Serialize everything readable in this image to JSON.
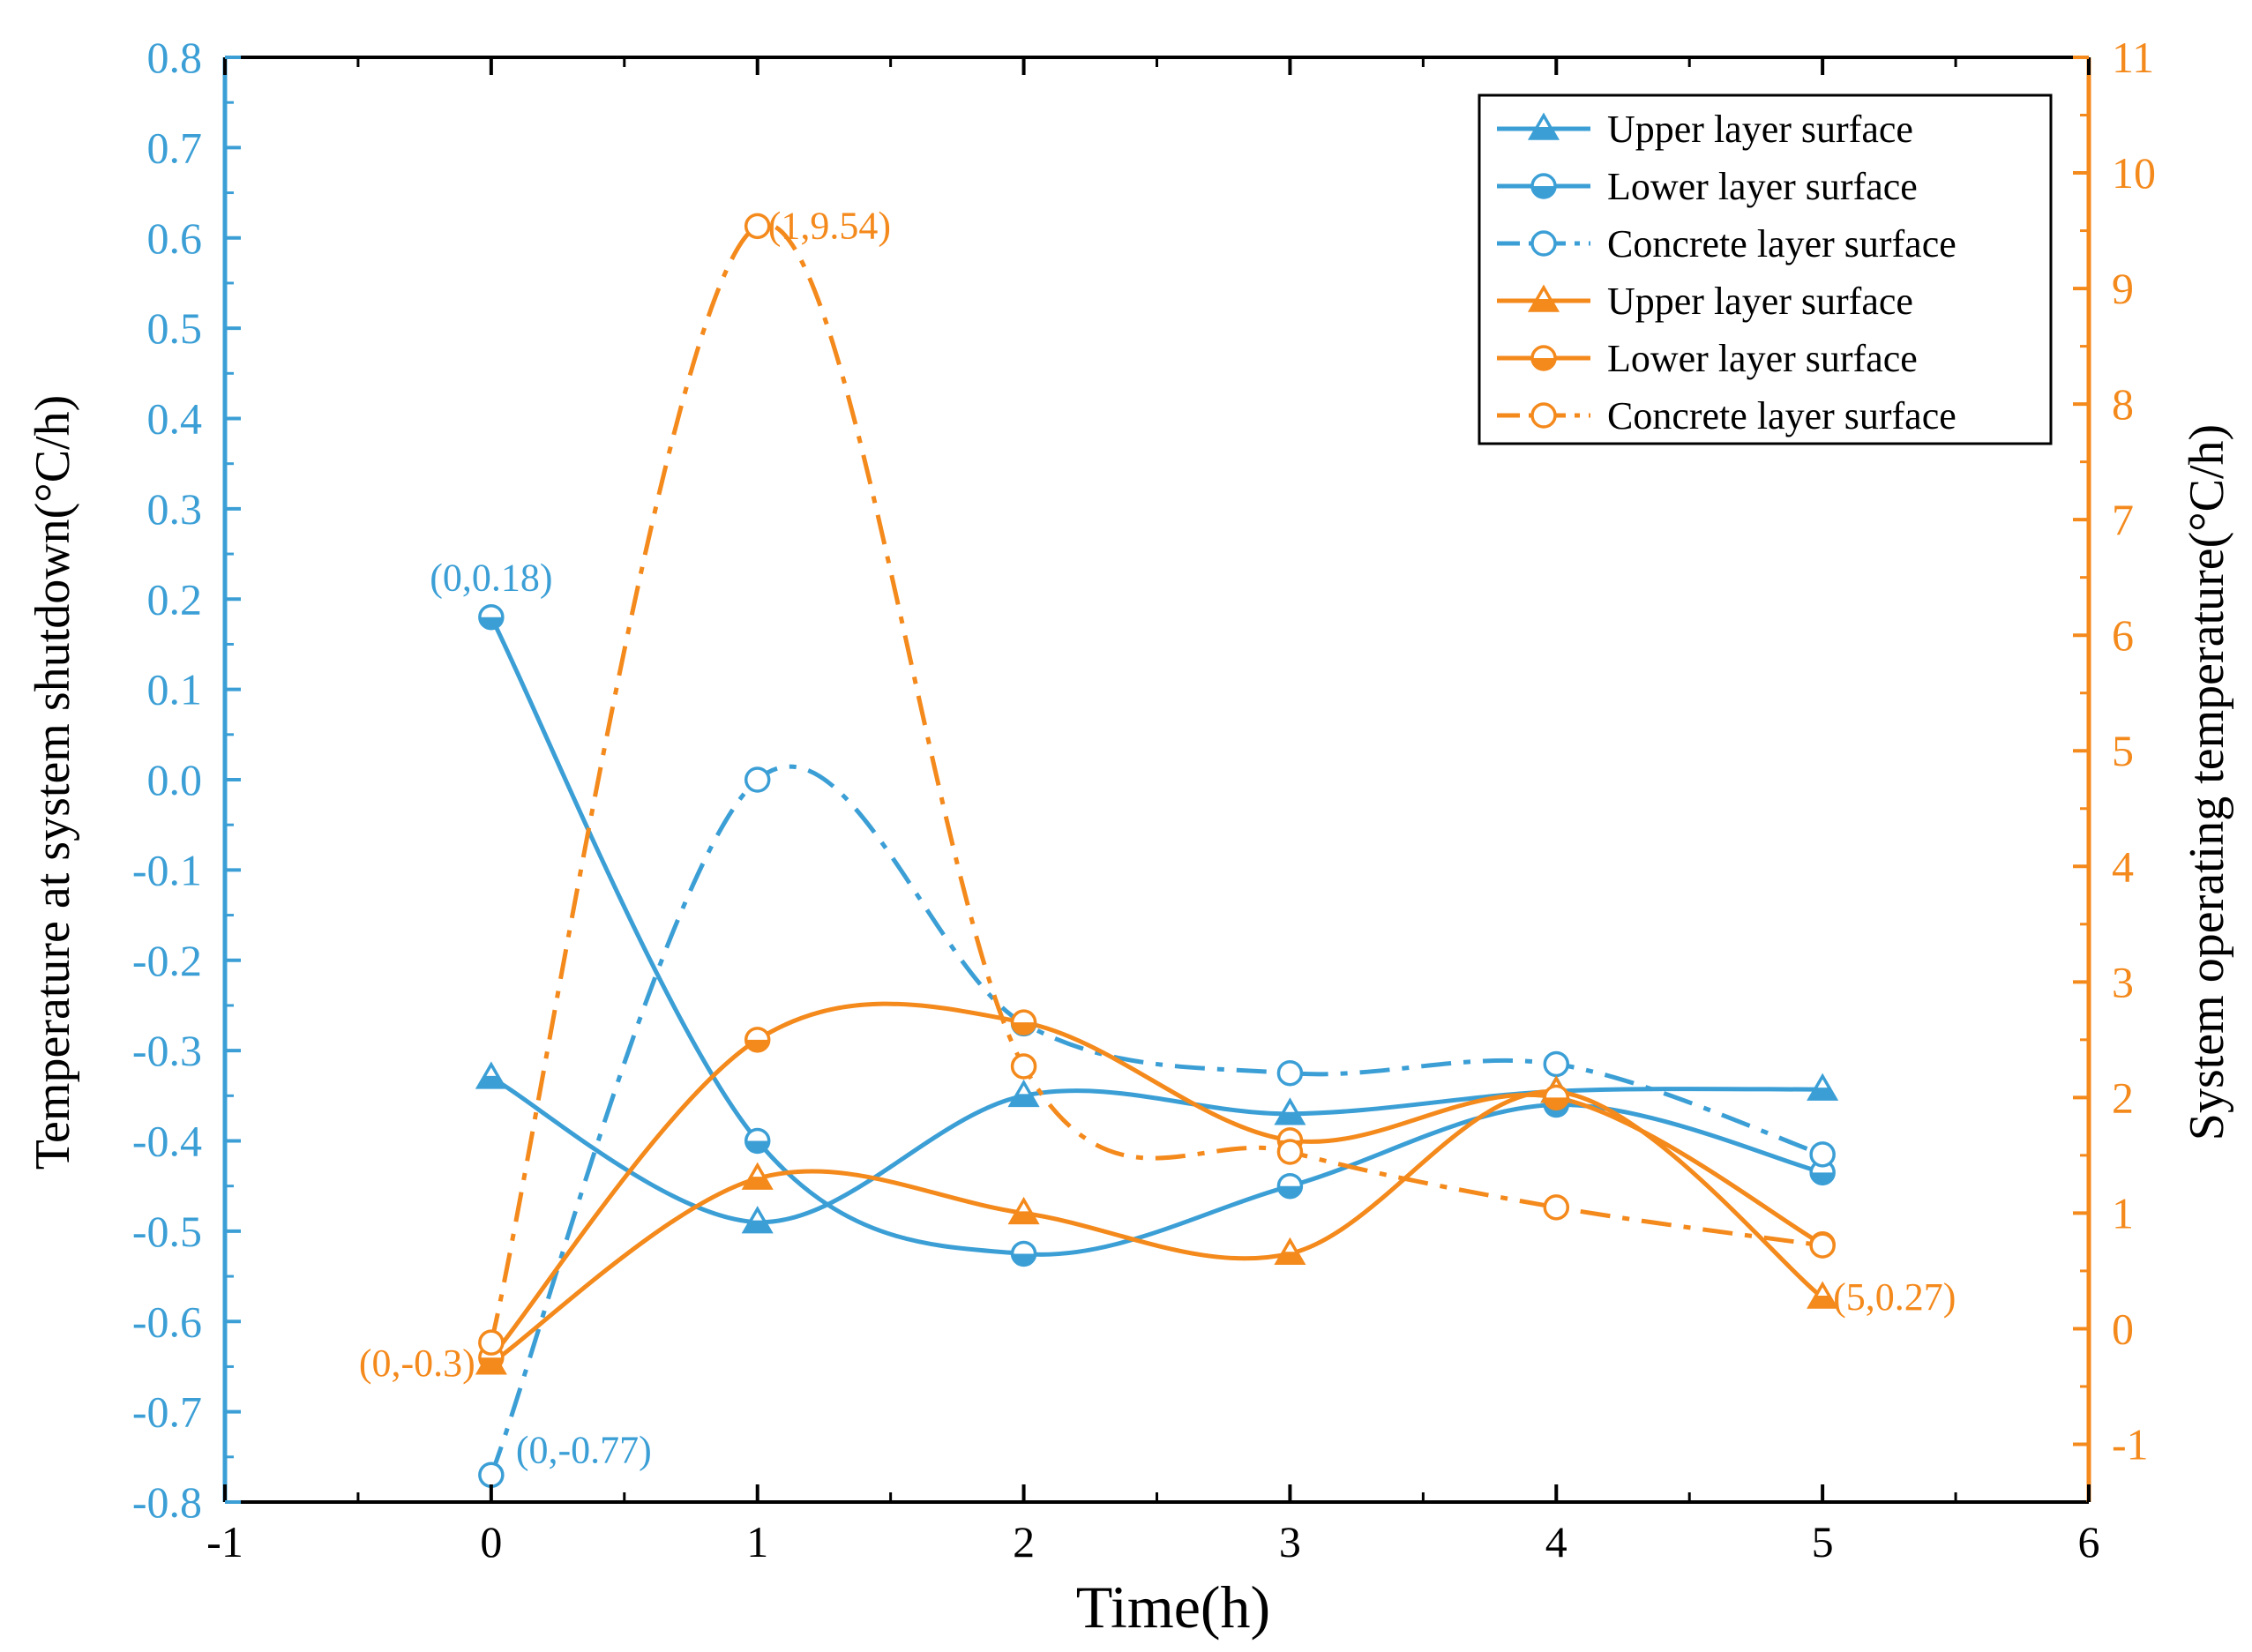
{
  "chart_data": {
    "type": "line",
    "title": "",
    "xlabel": "Time(h)",
    "ylabel_left": "Temperature at system shutdown(°C/h)",
    "ylabel_right": "System operating temperature(°C/h)",
    "xlim": [
      -1,
      6
    ],
    "ylim_left": [
      -0.8,
      0.8
    ],
    "ylim_right": [
      -1.5,
      11
    ],
    "x_ticks": [
      "-1",
      "0",
      "1",
      "2",
      "3",
      "4",
      "5",
      "6"
    ],
    "y_left_ticks": [
      "-0.8",
      "-0.7",
      "-0.6",
      "-0.5",
      "-0.4",
      "-0.3",
      "-0.2",
      "-0.1",
      "0.0",
      "0.1",
      "0.2",
      "0.3",
      "0.4",
      "0.5",
      "0.6",
      "0.7",
      "0.8"
    ],
    "y_right_ticks": [
      "-1",
      "0",
      "1",
      "2",
      "3",
      "4",
      "5",
      "6",
      "7",
      "8",
      "9",
      "10",
      "11"
    ],
    "legend_position": "top-right",
    "colors": {
      "left": "#3b9fd6",
      "right": "#f4891c"
    },
    "series": [
      {
        "name": "Upper layer surface",
        "axis": "left",
        "marker": "triangle",
        "dash": "solid",
        "x": [
          0,
          1,
          2,
          3,
          4,
          5
        ],
        "values": [
          -0.33,
          -0.49,
          -0.35,
          -0.37,
          -0.345,
          -0.343
        ]
      },
      {
        "name": "Lower layer surface",
        "axis": "left",
        "marker": "half-circle",
        "dash": "solid",
        "x": [
          0,
          1,
          2,
          3,
          4,
          5
        ],
        "values": [
          0.18,
          -0.4,
          -0.525,
          -0.45,
          -0.36,
          -0.435
        ]
      },
      {
        "name": "Concrete layer surface",
        "axis": "left",
        "marker": "open-circle",
        "dash": "dashdot",
        "x": [
          0,
          1,
          2,
          3,
          4,
          5
        ],
        "values": [
          -0.77,
          0.0,
          -0.27,
          -0.325,
          -0.315,
          -0.415
        ]
      },
      {
        "name": "Upper layer surface",
        "axis": "right",
        "marker": "triangle",
        "dash": "solid",
        "x": [
          0,
          1,
          2,
          3,
          4,
          5
        ],
        "values": [
          -0.3,
          1.3,
          1.0,
          0.65,
          2.05,
          0.27
        ]
      },
      {
        "name": "Lower layer surface",
        "axis": "right",
        "marker": "half-circle",
        "dash": "solid",
        "x": [
          0,
          1,
          2,
          3,
          4,
          5
        ],
        "values": [
          -0.25,
          2.5,
          2.65,
          1.63,
          2.0,
          0.73
        ]
      },
      {
        "name": "Concrete layer surface",
        "axis": "right",
        "marker": "open-circle",
        "dash": "dashdot",
        "x": [
          0,
          1,
          2,
          3,
          4,
          5
        ],
        "values": [
          -0.12,
          9.54,
          2.27,
          1.53,
          1.05,
          0.72
        ]
      }
    ],
    "annotations": [
      {
        "text": "(0,0.18)",
        "axis": "left",
        "x": 0,
        "y": 0.18
      },
      {
        "text": "(0,-0.77)",
        "axis": "left",
        "x": 0,
        "y": -0.77
      },
      {
        "text": "(1,9.54)",
        "axis": "right",
        "x": 1,
        "y": 9.54
      },
      {
        "text": "(0,-0.3)",
        "axis": "right",
        "x": 0,
        "y": -0.3
      },
      {
        "text": "(5,0.27)",
        "axis": "right",
        "x": 5,
        "y": 0.27
      }
    ]
  }
}
